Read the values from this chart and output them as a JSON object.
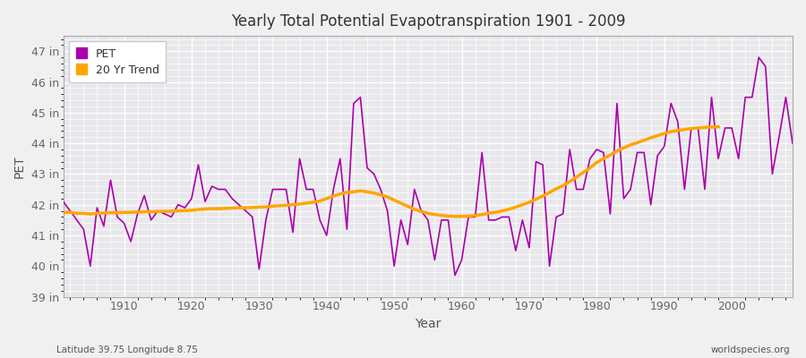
{
  "title": "Yearly Total Potential Evapotranspiration 1901 - 2009",
  "xlabel": "Year",
  "ylabel": "PET",
  "subtitle_left": "Latitude 39.75 Longitude 8.75",
  "subtitle_right": "worldspecies.org",
  "pet_color": "#aa00aa",
  "trend_color": "#FFA500",
  "background_color": "#f0f0f0",
  "plot_bg_color": "#e8e8ec",
  "ylim": [
    39,
    47.5
  ],
  "yticks": [
    39,
    40,
    41,
    42,
    43,
    44,
    45,
    46,
    47
  ],
  "ytick_labels": [
    "39 in",
    "40 in",
    "41 in",
    "42 in",
    "43 in",
    "44 in",
    "45 in",
    "46 in",
    "47 in"
  ],
  "years": [
    1901,
    1902,
    1903,
    1904,
    1905,
    1906,
    1907,
    1908,
    1909,
    1910,
    1911,
    1912,
    1913,
    1914,
    1915,
    1916,
    1917,
    1918,
    1919,
    1920,
    1921,
    1922,
    1923,
    1924,
    1925,
    1926,
    1927,
    1928,
    1929,
    1930,
    1931,
    1932,
    1933,
    1934,
    1935,
    1936,
    1937,
    1938,
    1939,
    1940,
    1941,
    1942,
    1943,
    1944,
    1945,
    1946,
    1947,
    1948,
    1949,
    1950,
    1951,
    1952,
    1953,
    1954,
    1955,
    1956,
    1957,
    1958,
    1959,
    1960,
    1961,
    1962,
    1963,
    1964,
    1965,
    1966,
    1967,
    1968,
    1969,
    1970,
    1971,
    1972,
    1973,
    1974,
    1975,
    1976,
    1977,
    1978,
    1979,
    1980,
    1981,
    1982,
    1983,
    1984,
    1985,
    1986,
    1987,
    1988,
    1989,
    1990,
    1991,
    1992,
    1993,
    1994,
    1995,
    1996,
    1997,
    1998,
    1999,
    2000,
    2001,
    2002,
    2003,
    2004,
    2005,
    2006,
    2007,
    2008,
    2009
  ],
  "pet": [
    42.1,
    41.8,
    41.5,
    41.2,
    40.0,
    41.9,
    41.3,
    42.8,
    41.6,
    41.4,
    40.8,
    41.7,
    42.3,
    41.5,
    41.8,
    41.7,
    41.6,
    42.0,
    41.9,
    42.2,
    43.3,
    42.1,
    42.6,
    42.5,
    42.5,
    42.2,
    42.0,
    41.8,
    41.6,
    39.9,
    41.5,
    42.5,
    42.5,
    42.5,
    41.1,
    43.5,
    42.5,
    42.5,
    41.5,
    41.0,
    42.5,
    43.5,
    41.2,
    45.3,
    45.5,
    43.2,
    43.0,
    42.5,
    41.8,
    40.0,
    41.5,
    40.7,
    42.5,
    41.8,
    41.5,
    40.2,
    41.5,
    41.5,
    39.7,
    40.2,
    41.6,
    41.6,
    43.7,
    41.5,
    41.5,
    41.6,
    41.6,
    40.5,
    41.5,
    40.6,
    43.4,
    43.3,
    40.0,
    41.6,
    41.7,
    43.8,
    42.5,
    42.5,
    43.5,
    43.8,
    43.7,
    41.7,
    45.3,
    42.2,
    42.5,
    43.7,
    43.7,
    42.0,
    43.6,
    43.9,
    45.3,
    44.7,
    42.5,
    44.5,
    44.5,
    42.5,
    45.5,
    43.5,
    44.5,
    44.5,
    43.5,
    45.5,
    45.5,
    46.8,
    46.5,
    43.0,
    44.2,
    45.5,
    44.0
  ],
  "trend": [
    41.75,
    41.75,
    41.72,
    41.72,
    41.7,
    41.72,
    41.73,
    41.74,
    41.74,
    41.75,
    41.75,
    41.76,
    41.77,
    41.77,
    41.78,
    41.78,
    41.79,
    41.8,
    41.81,
    41.82,
    41.84,
    41.86,
    41.87,
    41.87,
    41.88,
    41.89,
    41.9,
    41.9,
    41.91,
    41.92,
    41.93,
    41.95,
    41.97,
    41.98,
    42.0,
    42.02,
    42.05,
    42.08,
    42.12,
    42.2,
    42.28,
    42.35,
    42.4,
    42.42,
    42.45,
    42.42,
    42.38,
    42.32,
    42.25,
    42.15,
    42.05,
    41.95,
    41.85,
    41.78,
    41.72,
    41.68,
    41.65,
    41.63,
    41.62,
    41.62,
    41.63,
    41.65,
    41.68,
    41.72,
    41.75,
    41.8,
    41.85,
    41.92,
    42.0,
    42.08,
    42.18,
    42.28,
    42.4,
    42.52,
    42.62,
    42.75,
    42.9,
    43.05,
    43.2,
    43.38,
    43.5,
    43.62,
    43.75,
    43.85,
    43.95,
    44.02,
    44.1,
    44.18,
    44.25,
    44.32,
    44.38,
    44.42,
    44.45,
    44.48,
    44.5,
    44.52,
    44.53,
    44.54,
    null,
    null,
    null,
    null,
    null,
    null,
    null,
    null,
    null,
    null,
    null
  ]
}
